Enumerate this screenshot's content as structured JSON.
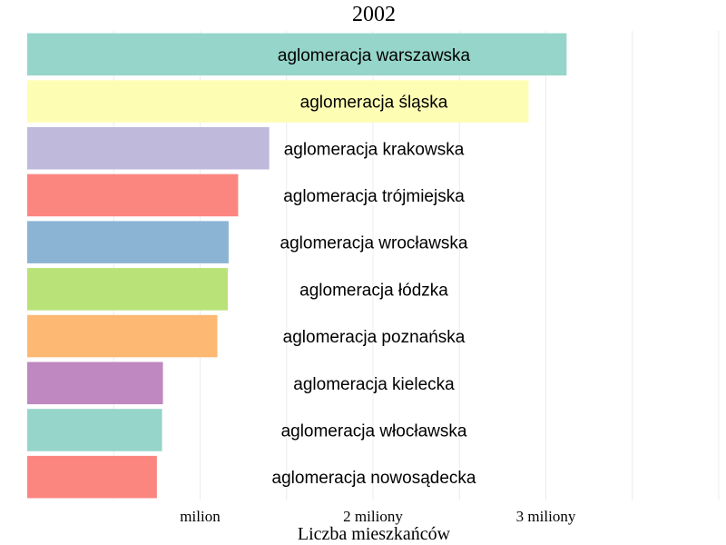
{
  "chart_data": {
    "type": "bar",
    "orientation": "horizontal",
    "title": "2002",
    "xlabel": "Liczba mieszkańców",
    "ylabel": "",
    "xlim": [
      0,
      4000000
    ],
    "grid": "vertical",
    "xticks": [
      {
        "value": 1000000,
        "label": "milion"
      },
      {
        "value": 2000000,
        "label": "2 miliony"
      },
      {
        "value": 3000000,
        "label": "3 miliony"
      }
    ],
    "categories": [
      "aglomeracja warszawska",
      "aglomeracja śląska",
      "aglomeracja krakowska",
      "aglomeracja trójmiejska",
      "aglomeracja wrocławska",
      "aglomeracja łódzka",
      "aglomeracja poznańska",
      "aglomeracja kielecka",
      "aglomeracja włocławska",
      "aglomeracja nowosądecka"
    ],
    "values": [
      3120000,
      2900000,
      1400000,
      1220000,
      1165000,
      1160000,
      1100000,
      785000,
      780000,
      750000
    ],
    "colors": [
      "#96d5c9",
      "#fdfdb4",
      "#bfbadb",
      "#fb8680",
      "#8bb4d4",
      "#b9e279",
      "#fdb874",
      "#bf88c0",
      "#96d5c9",
      "#fb8680"
    ]
  }
}
